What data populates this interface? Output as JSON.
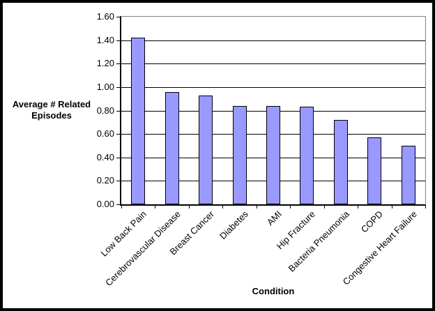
{
  "chart_data": {
    "type": "bar",
    "title": "",
    "categories": [
      "Low Back Pain",
      "Cerebrovascular Disease",
      "Breast Cancer",
      "Diabetes",
      "AMI",
      "Hip Fracture",
      "Bacteria Pneumonia",
      "COPD",
      "Congestive Heart Failure"
    ],
    "values": [
      1.42,
      0.96,
      0.93,
      0.84,
      0.84,
      0.83,
      0.72,
      0.57,
      0.5
    ],
    "xlabel": "Condition",
    "ylabel": "Average # Related Episodes",
    "ylim": [
      0,
      1.6
    ],
    "ytick_step": 0.2,
    "ytick_labels": [
      "0.00",
      "0.20",
      "0.40",
      "0.60",
      "0.80",
      "1.00",
      "1.20",
      "1.40",
      "1.60"
    ],
    "grid": true,
    "legend": false,
    "colors": {
      "bar_fill": "#9999FF",
      "bar_border": "#000000",
      "gridline": "#000000",
      "axis": "#000000",
      "plot_border": "#808080",
      "frame_border": "#000000",
      "background": "#FFFFFF"
    }
  }
}
